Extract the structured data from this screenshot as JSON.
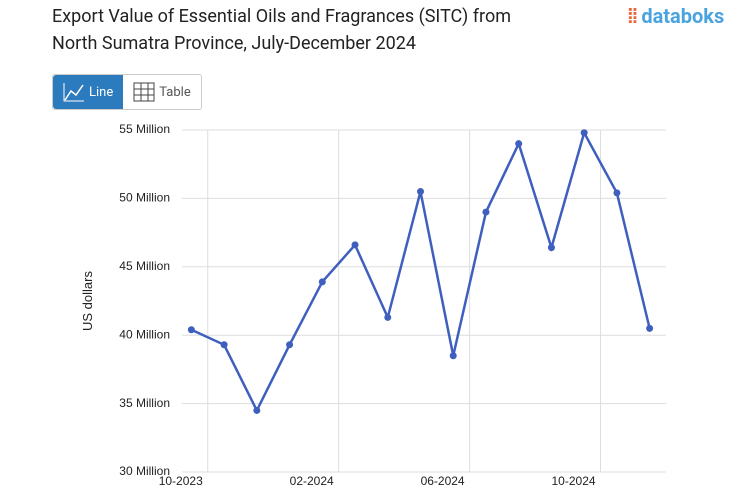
{
  "chart_data": {
    "type": "line",
    "title": "Export Value of Essential Oils and Fragrances (SITC) from North Sumatra Province, July-December 2024",
    "brand": "databoks",
    "buttons": [
      "Line",
      "Table"
    ],
    "y_label": "US dollars",
    "x": [
      "2023-09",
      "2023-10",
      "2023-11",
      "2023-12",
      "2024-01",
      "2024-02",
      "2024-03",
      "2024-04",
      "2024-05",
      "2024-06",
      "2024-07",
      "2024-08",
      "2024-09",
      "2024-10",
      "2024-11"
    ],
    "series": [
      {
        "name": "Export value",
        "color": "#3f5fbf",
        "values": [
          40400000,
          39300000,
          34500000,
          39300000,
          43900000,
          46600000,
          41300000,
          50500000,
          38500000,
          49000000,
          54000000,
          46400000,
          54800000,
          50400000,
          40500000
        ]
      }
    ],
    "xlim": [
      "2023-09",
      "2024-12"
    ],
    "xticks": [
      {
        "value": "2023-10",
        "label": "10-2023"
      },
      {
        "value": "2024-02",
        "label": "02-2024"
      },
      {
        "value": "2024-06",
        "label": "06-2024"
      },
      {
        "value": "2024-10",
        "label": "10-2024"
      }
    ],
    "ylim": [
      30000000,
      55000000
    ],
    "yticks": [
      {
        "value": 30000000,
        "label": "30 Million"
      },
      {
        "value": 35000000,
        "label": "35 Million"
      },
      {
        "value": 40000000,
        "label": "40 Million"
      },
      {
        "value": 45000000,
        "label": "45 Million"
      },
      {
        "value": 50000000,
        "label": "50 Million"
      },
      {
        "value": 55000000,
        "label": "55 Million"
      }
    ],
    "grid": true
  }
}
